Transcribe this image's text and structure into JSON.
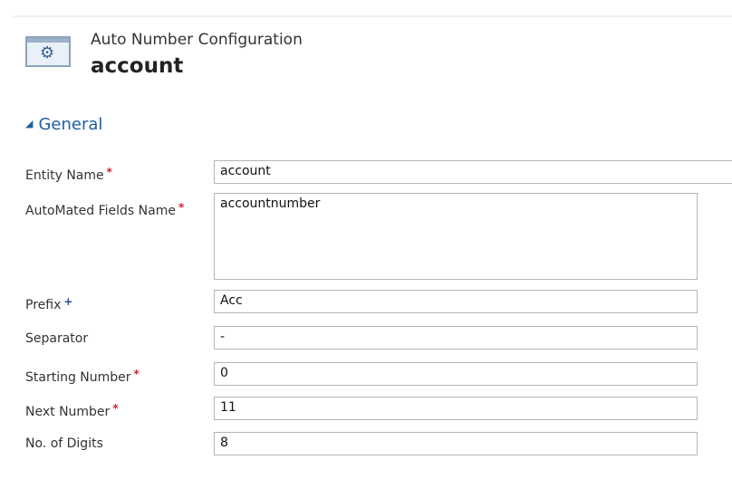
{
  "header": {
    "title": "Auto Number Configuration",
    "entity": "account",
    "icon": "gear-window-icon"
  },
  "section": {
    "label": "General",
    "expanded": true
  },
  "fields": [
    {
      "label": "Entity Name",
      "requirement": "required",
      "value": "account"
    },
    {
      "label": "AutoMated Fields Name",
      "requirement": "required",
      "value": "accountnumber"
    },
    {
      "label": "Prefix",
      "requirement": "recommended",
      "value": "Acc"
    },
    {
      "label": "Separator",
      "requirement": "none",
      "value": "-"
    },
    {
      "label": "Starting Number",
      "requirement": "required",
      "value": "0"
    },
    {
      "label": "Next Number",
      "requirement": "required",
      "value": "11"
    },
    {
      "label": "No. of Digits",
      "requirement": "none",
      "value": "8"
    }
  ],
  "markers": {
    "required": "*",
    "recommended": "+"
  },
  "colors": {
    "required": "#d0202a",
    "recommended": "#1f4fa0",
    "section": "#1f5fa0"
  }
}
